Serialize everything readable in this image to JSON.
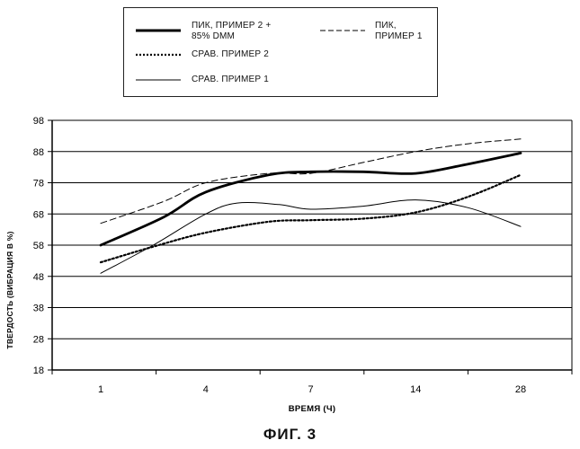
{
  "chart_data": {
    "type": "line",
    "title": "",
    "xlabel": "ВРЕМЯ (Ч)",
    "ylabel": "ТВЕРДОСТЬ (ВИБРАЦИЯ В %)",
    "categories": [
      "1",
      "4",
      "7",
      "14",
      "28"
    ],
    "ylim": [
      18,
      98
    ],
    "yticks": [
      18,
      28,
      38,
      48,
      58,
      68,
      78,
      88,
      98
    ],
    "grid": "horizontal",
    "legend_position": "top",
    "series": [
      {
        "name": "ПИК, ПРИМЕР 2 + 85% DMM",
        "style": "thick-solid",
        "points": [
          [
            0,
            58
          ],
          [
            0.6,
            67
          ],
          [
            1,
            75
          ],
          [
            1.6,
            80.5
          ],
          [
            2,
            81.5
          ],
          [
            2.5,
            81.5
          ],
          [
            3,
            81
          ],
          [
            3.5,
            84
          ],
          [
            4,
            87.5
          ]
        ]
      },
      {
        "name": "ПИК, ПРИМЕР 1",
        "style": "dashed",
        "points": [
          [
            0,
            65
          ],
          [
            0.6,
            72
          ],
          [
            1,
            78
          ],
          [
            1.6,
            81
          ],
          [
            2,
            81
          ],
          [
            2.5,
            84.5
          ],
          [
            3,
            88
          ],
          [
            3.5,
            90.5
          ],
          [
            4,
            92
          ]
        ]
      },
      {
        "name": "СРАВ. ПРИМЕР 2",
        "style": "dotted",
        "points": [
          [
            0,
            52.5
          ],
          [
            0.5,
            57.5
          ],
          [
            1,
            62
          ],
          [
            1.6,
            65.5
          ],
          [
            2,
            66
          ],
          [
            2.5,
            66.5
          ],
          [
            3,
            68.5
          ],
          [
            3.5,
            73.5
          ],
          [
            4,
            80.5
          ]
        ]
      },
      {
        "name": "СРАВ. ПРИМЕР 1",
        "style": "thin-solid",
        "points": [
          [
            0,
            49
          ],
          [
            0.5,
            58
          ],
          [
            1,
            68
          ],
          [
            1.3,
            71.5
          ],
          [
            1.7,
            71
          ],
          [
            2,
            69.5
          ],
          [
            2.5,
            70.5
          ],
          [
            3,
            72.5
          ],
          [
            3.5,
            70
          ],
          [
            4,
            64
          ]
        ]
      }
    ]
  },
  "legend": {
    "entry1_line1": "ПИК, ПРИМЕР 2 +",
    "entry1_line2": "85% DMM",
    "entry2_line1": "ПИК,",
    "entry2_line2": "ПРИМЕР 1",
    "entry3": "СРАВ. ПРИМЕР 2",
    "entry4": "СРАВ. ПРИМЕР 1"
  },
  "caption": "ФИГ. 3"
}
